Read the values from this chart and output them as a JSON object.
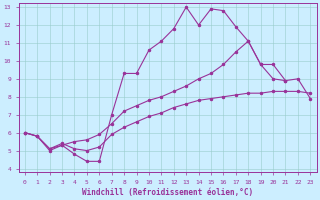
{
  "title": "",
  "xlabel": "Windchill (Refroidissement éolien,°C)",
  "background_color": "#cceeff",
  "line_color": "#993399",
  "xlim": [
    -0.5,
    23.5
  ],
  "ylim": [
    3.8,
    13.2
  ],
  "x": [
    0,
    1,
    2,
    3,
    4,
    5,
    6,
    7,
    8,
    9,
    10,
    11,
    12,
    13,
    14,
    15,
    16,
    17,
    18,
    19,
    20,
    21,
    22,
    23
  ],
  "line1": [
    6.0,
    5.8,
    5.0,
    5.3,
    4.8,
    4.4,
    4.4,
    7.0,
    9.3,
    9.3,
    10.6,
    11.1,
    11.8,
    13.0,
    12.0,
    12.9,
    12.8,
    11.9,
    11.1,
    9.8,
    9.0,
    8.9,
    null,
    null
  ],
  "line2": [
    6.0,
    5.8,
    5.1,
    5.3,
    5.5,
    5.6,
    5.9,
    6.5,
    7.2,
    7.5,
    7.8,
    8.0,
    8.3,
    8.6,
    9.0,
    9.3,
    9.8,
    10.5,
    11.1,
    9.8,
    9.8,
    8.9,
    9.0,
    7.9
  ],
  "line3": [
    6.0,
    5.8,
    5.1,
    5.4,
    5.1,
    5.0,
    5.2,
    5.9,
    6.3,
    6.6,
    6.9,
    7.1,
    7.4,
    7.6,
    7.8,
    7.9,
    8.0,
    8.1,
    8.2,
    8.2,
    8.3,
    8.3,
    8.3,
    8.2
  ]
}
